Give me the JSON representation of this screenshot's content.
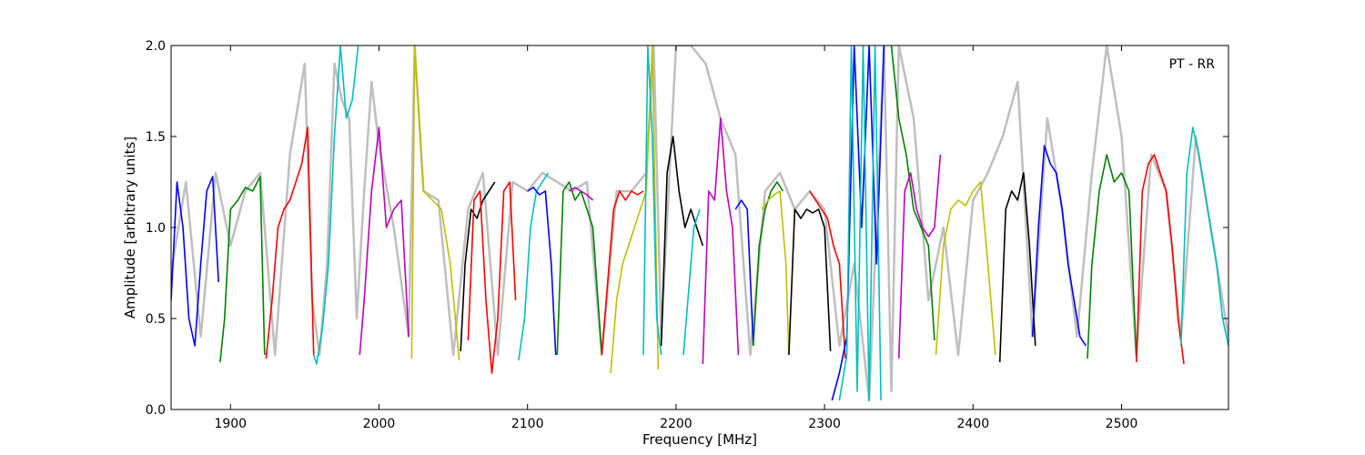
{
  "chart_data": {
    "type": "line",
    "title": "",
    "xlabel": "Frequency [MHz]",
    "ylabel": "Amplitude [arbitrary units]",
    "xlim": [
      1860,
      2572
    ],
    "ylim": [
      0.0,
      2.0
    ],
    "xticks": [
      1900,
      2000,
      2100,
      2200,
      2300,
      2400,
      2500
    ],
    "yticks": [
      0.0,
      0.5,
      1.0,
      1.5,
      2.0
    ],
    "ytick_labels": [
      "0.0",
      "0.5",
      "1.0",
      "1.5",
      "2.0"
    ],
    "grid": false,
    "annotation": "PT - RR",
    "background_trace": {
      "color": "#bfbfbf",
      "x": [
        1860,
        1870,
        1880,
        1890,
        1900,
        1910,
        1920,
        1930,
        1940,
        1950,
        1955,
        1960,
        1965,
        1970,
        1975,
        1980,
        1985,
        1990,
        1995,
        2000,
        2010,
        2020,
        2024,
        2030,
        2040,
        2050,
        2060,
        2070,
        2080,
        2090,
        2100,
        2110,
        2120,
        2130,
        2140,
        2150,
        2160,
        2170,
        2180,
        2185,
        2190,
        2200,
        2210,
        2220,
        2230,
        2240,
        2250,
        2260,
        2270,
        2280,
        2290,
        2300,
        2310,
        2320,
        2330,
        2340,
        2345,
        2350,
        2360,
        2370,
        2380,
        2390,
        2400,
        2410,
        2420,
        2430,
        2440,
        2450,
        2460,
        2470,
        2480,
        2490,
        2500,
        2510,
        2520,
        2530,
        2540,
        2550,
        2560,
        2572
      ],
      "y": [
        0.75,
        1.25,
        0.4,
        1.3,
        0.9,
        1.2,
        1.3,
        0.3,
        1.4,
        1.9,
        0.6,
        0.3,
        0.8,
        1.9,
        1.7,
        1.6,
        0.5,
        1.2,
        1.8,
        1.45,
        1.0,
        0.4,
        2.0,
        1.2,
        1.15,
        0.3,
        1.1,
        1.3,
        0.3,
        1.25,
        1.2,
        1.3,
        1.25,
        1.2,
        1.25,
        0.3,
        1.2,
        1.2,
        1.3,
        2.0,
        0.4,
        2.0,
        2.0,
        1.9,
        1.6,
        1.4,
        0.3,
        1.2,
        1.3,
        1.1,
        1.2,
        1.1,
        0.35,
        0.8,
        0.05,
        2.0,
        0.1,
        2.0,
        1.6,
        0.6,
        1.0,
        0.3,
        1.15,
        1.3,
        1.5,
        1.8,
        0.4,
        1.6,
        1.1,
        0.4,
        1.3,
        2.0,
        1.5,
        0.3,
        1.4,
        1.2,
        0.4,
        1.5,
        1.0,
        0.4
      ]
    },
    "series": [
      {
        "color": "#0000ff",
        "x": [
          1860,
          1864,
          1868,
          1872,
          1876,
          1880,
          1884,
          1888,
          1892
        ],
        "y": [
          0.6,
          1.25,
          1.0,
          0.5,
          0.35,
          0.8,
          1.2,
          1.28,
          0.7
        ]
      },
      {
        "color": "#008000",
        "x": [
          1893,
          1896,
          1900,
          1905,
          1910,
          1915,
          1920,
          1923
        ],
        "y": [
          0.26,
          0.5,
          1.1,
          1.15,
          1.22,
          1.2,
          1.28,
          0.3
        ]
      },
      {
        "color": "#ff0000",
        "x": [
          1924,
          1928,
          1932,
          1936,
          1940,
          1944,
          1948,
          1952,
          1956
        ],
        "y": [
          0.28,
          0.6,
          1.0,
          1.1,
          1.15,
          1.25,
          1.35,
          1.55,
          0.3
        ]
      },
      {
        "color": "#00bfbf",
        "x": [
          1956,
          1958,
          1962,
          1966,
          1970,
          1974,
          1978,
          1982,
          1986
        ],
        "y": [
          0.3,
          0.25,
          0.45,
          0.8,
          1.5,
          2.0,
          1.6,
          1.7,
          2.0
        ]
      },
      {
        "color": "#bf00bf",
        "x": [
          1987,
          1990,
          1995,
          2000,
          2005,
          2010,
          2015,
          2020
        ],
        "y": [
          0.3,
          0.6,
          1.2,
          1.55,
          1.0,
          1.1,
          1.15,
          0.4
        ]
      },
      {
        "color": "#bfbf00",
        "x": [
          2022,
          2024,
          2030,
          2036,
          2042,
          2048,
          2054
        ],
        "y": [
          0.28,
          2.0,
          1.2,
          1.15,
          1.1,
          0.8,
          0.27
        ]
      },
      {
        "color": "#000000",
        "x": [
          2055,
          2058,
          2062,
          2066,
          2070,
          2074,
          2078
        ],
        "y": [
          0.32,
          0.8,
          1.1,
          1.05,
          1.15,
          1.2,
          1.25
        ]
      },
      {
        "color": "#ff0000",
        "x": [
          2060,
          2064,
          2068,
          2072,
          2076,
          2080,
          2084,
          2088,
          2092
        ],
        "y": [
          0.38,
          1.15,
          1.2,
          0.6,
          0.2,
          0.5,
          1.2,
          1.25,
          0.6
        ]
      },
      {
        "color": "#00bfbf",
        "x": [
          2094,
          2098,
          2102,
          2106,
          2110,
          2114
        ],
        "y": [
          0.27,
          0.5,
          1.0,
          1.2,
          1.25,
          1.3
        ]
      },
      {
        "color": "#0000ff",
        "x": [
          2100,
          2104,
          2108,
          2112,
          2116,
          2119
        ],
        "y": [
          1.2,
          1.22,
          1.18,
          1.2,
          0.8,
          0.3
        ]
      },
      {
        "color": "#008000",
        "x": [
          2120,
          2124,
          2128,
          2132,
          2136,
          2140,
          2144,
          2150
        ],
        "y": [
          0.3,
          1.2,
          1.25,
          1.15,
          1.2,
          1.1,
          1.0,
          0.3
        ]
      },
      {
        "color": "#bf00bf",
        "x": [
          2128,
          2132,
          2136,
          2140,
          2144
        ],
        "y": [
          1.2,
          1.22,
          1.2,
          1.18,
          1.15
        ]
      },
      {
        "color": "#ff0000",
        "x": [
          2150,
          2154,
          2158,
          2162,
          2166,
          2170,
          2174,
          2178
        ],
        "y": [
          0.3,
          0.7,
          1.1,
          1.2,
          1.15,
          1.2,
          1.18,
          1.2
        ]
      },
      {
        "color": "#bfbf00",
        "x": [
          2156,
          2160,
          2164,
          2168,
          2172,
          2176,
          2180,
          2184,
          2188
        ],
        "y": [
          0.2,
          0.6,
          0.8,
          0.9,
          1.0,
          1.1,
          1.2,
          2.0,
          0.22
        ]
      },
      {
        "color": "#00bfbf",
        "x": [
          2178,
          2181,
          2184,
          2187,
          2190
        ],
        "y": [
          0.3,
          2.0,
          1.5,
          0.5,
          0.3
        ]
      },
      {
        "color": "#000000",
        "x": [
          2190,
          2194,
          2198,
          2202,
          2206,
          2210,
          2214,
          2218
        ],
        "y": [
          0.35,
          1.3,
          1.5,
          1.2,
          1.0,
          1.1,
          1.0,
          0.9
        ]
      },
      {
        "color": "#00bfbf",
        "x": [
          2205,
          2208,
          2212,
          2216
        ],
        "y": [
          0.3,
          0.6,
          1.0,
          1.1
        ]
      },
      {
        "color": "#bf00bf",
        "x": [
          2218,
          2222,
          2226,
          2230,
          2234,
          2238,
          2242
        ],
        "y": [
          0.25,
          1.2,
          1.15,
          1.6,
          1.2,
          1.0,
          0.3
        ]
      },
      {
        "color": "#0000ff",
        "x": [
          2240,
          2244,
          2248,
          2252
        ],
        "y": [
          1.1,
          1.15,
          1.1,
          0.35
        ]
      },
      {
        "color": "#008000",
        "x": [
          2252,
          2256,
          2260,
          2264,
          2268,
          2272
        ],
        "y": [
          0.35,
          0.9,
          1.1,
          1.2,
          1.25,
          1.2
        ]
      },
      {
        "color": "#bfbf00",
        "x": [
          2258,
          2262,
          2266,
          2270,
          2274,
          2276
        ],
        "y": [
          1.1,
          1.15,
          1.18,
          1.2,
          0.8,
          0.3
        ]
      },
      {
        "color": "#000000",
        "x": [
          2276,
          2280,
          2284,
          2288,
          2292,
          2296,
          2300,
          2304
        ],
        "y": [
          0.3,
          1.1,
          1.05,
          1.1,
          1.08,
          1.1,
          1.0,
          0.32
        ]
      },
      {
        "color": "#ff0000",
        "x": [
          2290,
          2294,
          2298,
          2302,
          2306,
          2310,
          2314
        ],
        "y": [
          1.2,
          1.15,
          1.1,
          1.05,
          0.9,
          0.8,
          0.28
        ]
      },
      {
        "color": "#0000ff",
        "x": [
          2305,
          2310,
          2315,
          2320,
          2325,
          2330,
          2335,
          2340
        ],
        "y": [
          0.05,
          0.2,
          0.4,
          2.0,
          1.0,
          2.0,
          0.8,
          2.0
        ]
      },
      {
        "color": "#00bfbf",
        "x": [
          2310,
          2315,
          2318,
          2322,
          2326,
          2330,
          2334,
          2338
        ],
        "y": [
          0.05,
          0.3,
          2.0,
          0.1,
          2.0,
          0.05,
          2.0,
          0.05
        ]
      },
      {
        "color": "#008000",
        "x": [
          2345,
          2350,
          2355,
          2360,
          2365,
          2370,
          2374
        ],
        "y": [
          2.0,
          1.6,
          1.4,
          1.1,
          1.0,
          0.9,
          0.38
        ]
      },
      {
        "color": "#bf00bf",
        "x": [
          2350,
          2354,
          2358,
          2362,
          2366,
          2370,
          2374,
          2378
        ],
        "y": [
          0.28,
          1.2,
          1.3,
          1.1,
          1.0,
          0.95,
          1.0,
          1.4
        ]
      },
      {
        "color": "#bfbf00",
        "x": [
          2375,
          2380,
          2385,
          2390,
          2395,
          2400,
          2405,
          2410,
          2415
        ],
        "y": [
          0.3,
          0.9,
          1.1,
          1.15,
          1.12,
          1.2,
          1.25,
          0.8,
          0.3
        ]
      },
      {
        "color": "#000000",
        "x": [
          2418,
          2422,
          2426,
          2430,
          2434,
          2438,
          2442
        ],
        "y": [
          0.26,
          1.1,
          1.2,
          1.15,
          1.3,
          0.9,
          0.35
        ]
      },
      {
        "color": "#0000ff",
        "x": [
          2440,
          2444,
          2448,
          2452,
          2456,
          2460,
          2464,
          2468,
          2472,
          2476
        ],
        "y": [
          0.4,
          1.0,
          1.45,
          1.35,
          1.3,
          1.1,
          0.8,
          0.6,
          0.4,
          0.35
        ]
      },
      {
        "color": "#008000",
        "x": [
          2477,
          2480,
          2485,
          2490,
          2495,
          2500,
          2505,
          2510
        ],
        "y": [
          0.28,
          0.8,
          1.2,
          1.4,
          1.25,
          1.3,
          1.2,
          0.28
        ]
      },
      {
        "color": "#ff0000",
        "x": [
          2510,
          2514,
          2518,
          2522,
          2526,
          2530,
          2534,
          2538,
          2542
        ],
        "y": [
          0.26,
          1.2,
          1.35,
          1.4,
          1.3,
          1.2,
          0.9,
          0.5,
          0.25
        ]
      },
      {
        "color": "#00bfbf",
        "x": [
          2540,
          2544,
          2548,
          2552,
          2556,
          2560,
          2564,
          2568,
          2572
        ],
        "y": [
          0.36,
          1.3,
          1.55,
          1.4,
          1.2,
          1.0,
          0.8,
          0.5,
          0.35
        ]
      }
    ]
  }
}
